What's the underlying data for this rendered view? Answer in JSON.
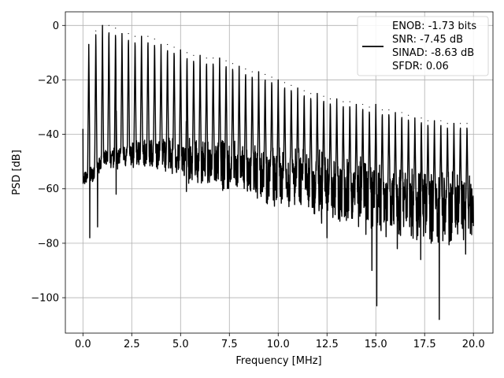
{
  "chart_data": {
    "type": "line",
    "xlabel": "Frequency [MHz]",
    "ylabel": "PSD [dB]",
    "xlim": [
      -0.9,
      21.0
    ],
    "ylim": [
      -113,
      5
    ],
    "xticks": [
      0.0,
      2.5,
      5.0,
      7.5,
      10.0,
      12.5,
      15.0,
      17.5,
      20.0
    ],
    "xtick_labels": [
      "0.0",
      "2.5",
      "5.0",
      "7.5",
      "10.0",
      "12.5",
      "15.0",
      "17.5",
      "20.0"
    ],
    "yticks": [
      0,
      -20,
      -40,
      -60,
      -80,
      -100
    ],
    "ytick_labels": [
      "0",
      "−20",
      "−40",
      "−60",
      "−80",
      "−100"
    ],
    "grid": true,
    "legend_position": "top-right",
    "legend_lines": [
      "ENOB: -1.73 bits",
      "SNR: -7.45 dB",
      "SINAD: -8.63 dB",
      "SFDR: 0.06"
    ],
    "series": [
      {
        "color": "#000000",
        "harmonic_peaks": {
          "x": [
            0.3,
            0.66,
            1.0,
            1.33,
            1.67,
            2.0,
            2.33,
            2.67,
            3.0,
            3.33,
            3.67,
            4.0,
            4.33,
            4.67,
            5.0,
            5.33,
            5.67,
            6.0,
            6.33,
            6.67,
            7.0,
            7.33,
            7.67,
            8.0,
            8.33,
            8.67,
            9.0,
            9.33,
            9.67,
            10.0,
            10.33,
            10.67,
            11.0,
            11.33,
            11.67,
            12.0,
            12.33,
            12.67,
            13.0,
            13.33,
            13.67,
            14.0,
            14.33,
            14.67,
            15.0,
            15.33,
            15.67,
            16.0,
            16.33,
            16.67,
            17.0,
            17.33,
            17.67,
            18.0,
            18.33,
            18.67,
            19.0,
            19.33,
            19.67
          ],
          "y": [
            -7,
            -2,
            0,
            0,
            -1,
            -3,
            -3,
            -4,
            -4,
            -4,
            -5,
            -7,
            -7,
            -8,
            -9,
            -10,
            -11,
            -11,
            -12,
            -12,
            -12,
            -13,
            -14,
            -15,
            -16,
            -17,
            -17,
            -18,
            -19,
            -20,
            -21,
            -22,
            -23,
            -24,
            -25,
            -25,
            -26,
            -27,
            -27,
            -28,
            -28,
            -29,
            -29,
            -30,
            -29,
            -31,
            -31,
            -32,
            -32,
            -33,
            -34,
            -34,
            -35,
            -35,
            -35,
            -36,
            -36,
            -36,
            -36
          ]
        },
        "noise_floor": {
          "x": [
            0.0,
            0.5,
            1.0,
            2.0,
            3.0,
            4.0,
            5.0,
            6.0,
            7.0,
            8.0,
            9.0,
            10.0,
            11.0,
            12.0,
            13.0,
            14.0,
            15.0,
            16.0,
            17.0,
            18.0,
            19.0,
            20.0
          ],
          "y": [
            -57,
            -54,
            -50,
            -48,
            -47,
            -47,
            -49,
            -51,
            -51,
            -53,
            -54,
            -56,
            -57,
            -59,
            -61,
            -62,
            -63,
            -64,
            -65,
            -66,
            -67,
            -67
          ]
        },
        "deep_dips": {
          "x": [
            0.35,
            0.75,
            1.7,
            5.3,
            9.9,
            12.5,
            14.8,
            15.05,
            16.1,
            17.3,
            18.25,
            19.6
          ],
          "y": [
            -78,
            -74,
            -62,
            -61,
            -64,
            -78,
            -90,
            -103,
            -82,
            -86,
            -108,
            -84
          ]
        }
      }
    ]
  }
}
